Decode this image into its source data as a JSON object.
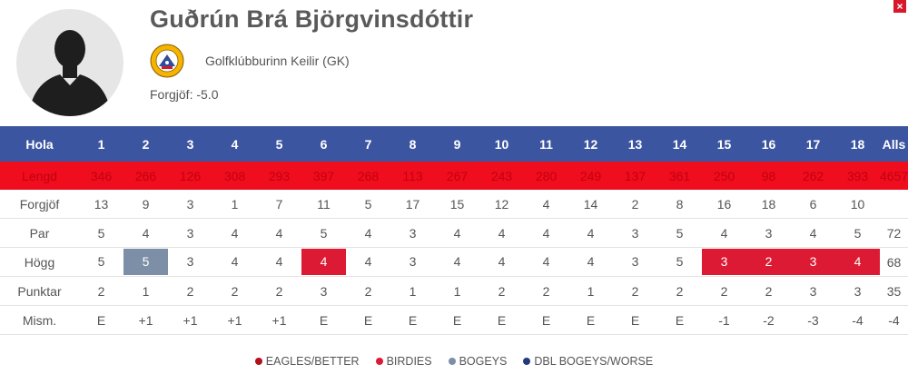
{
  "player": {
    "name": "Guðrún Brá Björgvinsdóttir",
    "club": "Golfklúbburinn Keilir (GK)",
    "handicap": "Forgjöf: -5.0"
  },
  "close_label": "×",
  "scorecard": {
    "header": {
      "label": "Hola",
      "holes": [
        "1",
        "2",
        "3",
        "4",
        "5",
        "6",
        "7",
        "8",
        "9",
        "10",
        "11",
        "12",
        "13",
        "14",
        "15",
        "16",
        "17",
        "18"
      ],
      "total": "Alls"
    },
    "rows": [
      {
        "key": "lengd",
        "label": "Lengd",
        "values": [
          "346",
          "266",
          "126",
          "308",
          "293",
          "397",
          "268",
          "113",
          "267",
          "243",
          "280",
          "249",
          "137",
          "361",
          "250",
          "98",
          "262",
          "393"
        ],
        "total": "4657"
      },
      {
        "key": "forgjof",
        "label": "Forgjöf",
        "values": [
          "13",
          "9",
          "3",
          "1",
          "7",
          "11",
          "5",
          "17",
          "15",
          "12",
          "4",
          "14",
          "2",
          "8",
          "16",
          "18",
          "6",
          "10"
        ],
        "total": ""
      },
      {
        "key": "par",
        "label": "Par",
        "values": [
          "5",
          "4",
          "3",
          "4",
          "4",
          "5",
          "4",
          "3",
          "4",
          "4",
          "4",
          "4",
          "3",
          "5",
          "4",
          "3",
          "4",
          "5"
        ],
        "total": "72"
      },
      {
        "key": "hogg",
        "label": "Högg",
        "values": [
          "5",
          "5",
          "3",
          "4",
          "4",
          "4",
          "4",
          "3",
          "4",
          "4",
          "4",
          "4",
          "3",
          "5",
          "3",
          "2",
          "3",
          "4"
        ],
        "total": "68"
      },
      {
        "key": "punktar",
        "label": "Punktar",
        "values": [
          "2",
          "1",
          "2",
          "2",
          "2",
          "3",
          "2",
          "1",
          "1",
          "2",
          "2",
          "1",
          "2",
          "2",
          "2",
          "2",
          "3",
          "3"
        ],
        "total": "35"
      },
      {
        "key": "mism",
        "label": "Mism.",
        "values": [
          "E",
          "+1",
          "+1",
          "+1",
          "+1",
          "E",
          "E",
          "E",
          "E",
          "E",
          "E",
          "E",
          "E",
          "E",
          "-1",
          "-2",
          "-3",
          "-4"
        ],
        "total": "-4"
      }
    ]
  },
  "legend": [
    {
      "label": "EAGLES/BETTER",
      "color": "#b2111b"
    },
    {
      "label": "BIRDIES",
      "color": "#dd1a33"
    },
    {
      "label": "BOGEYS",
      "color": "#7d8fa7"
    },
    {
      "label": "DBL BOGEYS/WORSE",
      "color": "#233a7d"
    }
  ]
}
